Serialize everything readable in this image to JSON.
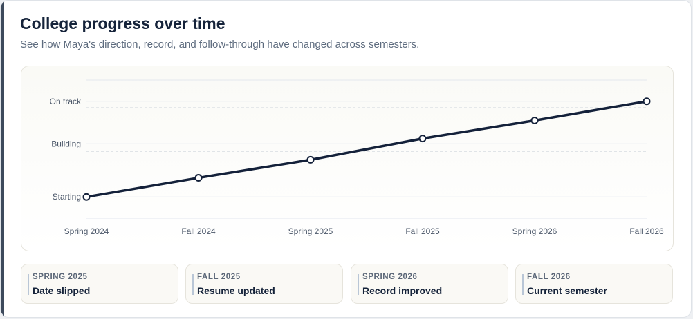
{
  "header": {
    "title": "College progress over time",
    "subtitle": "See how Maya's direction, record, and follow-through have changed across semesters."
  },
  "chart_data": {
    "type": "line",
    "categories": [
      "Spring 2024",
      "Fall 2024",
      "Spring 2025",
      "Fall 2025",
      "Spring 2026",
      "Fall 2026"
    ],
    "y_levels": [
      "Starting",
      "Building",
      "On track"
    ],
    "y_level_values": [
      0,
      2.5,
      4.5
    ],
    "values": [
      0,
      0.9,
      1.75,
      2.75,
      3.6,
      4.5
    ],
    "reference_lines": [
      2.15,
      4.2
    ],
    "ylim": [
      -1,
      5.5
    ],
    "grid": true,
    "colors": {
      "line": "#14213a",
      "point_fill": "#ffffff",
      "grid": "#e3e7ee",
      "reference": "#cfd5dc"
    }
  },
  "milestones": [
    {
      "term": "Spring 2025",
      "event": "Date slipped"
    },
    {
      "term": "Fall 2025",
      "event": "Resume updated"
    },
    {
      "term": "Spring 2026",
      "event": "Record improved"
    },
    {
      "term": "Fall 2026",
      "event": "Current semester"
    }
  ]
}
